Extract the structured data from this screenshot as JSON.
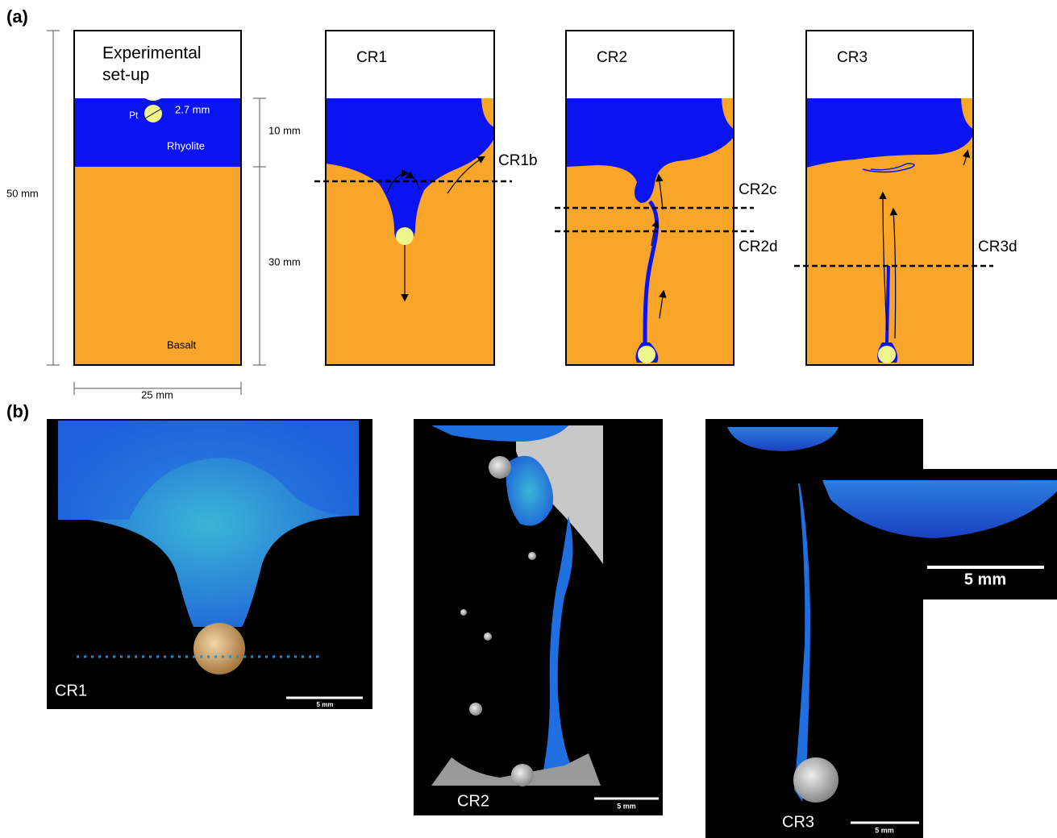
{
  "panel_a": {
    "label": "(a)",
    "setup": {
      "title_lines": [
        "Experimental",
        "set-up"
      ],
      "pt": "Pt",
      "sphere_diameter": "2.7 mm",
      "upper_layer": "Rhyolite",
      "lower_layer": "Basalt",
      "dimensions": {
        "height": "50 mm",
        "rhyolite": "10 mm",
        "basalt": "30 mm",
        "width": "25 mm"
      }
    },
    "runs": [
      {
        "name": "CR1",
        "sections": [
          "CR1b"
        ]
      },
      {
        "name": "CR2",
        "sections": [
          "CR2c",
          "CR2d"
        ]
      },
      {
        "name": "CR3",
        "sections": [
          "CR3d"
        ]
      }
    ]
  },
  "panel_b": {
    "label": "(b)",
    "images": [
      {
        "name": "CR1",
        "scale_bar": "5 mm"
      },
      {
        "name": "CR2",
        "scale_bar": "5 mm"
      },
      {
        "name": "CR3",
        "scale_bar": "5 mm",
        "inset_scale_bar": "5 mm"
      }
    ]
  }
}
